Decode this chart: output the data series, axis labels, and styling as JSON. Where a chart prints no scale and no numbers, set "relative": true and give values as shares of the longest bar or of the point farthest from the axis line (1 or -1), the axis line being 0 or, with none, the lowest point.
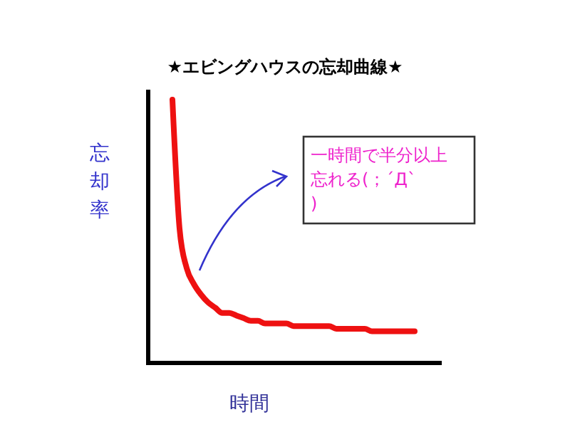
{
  "chart_data": {
    "type": "line",
    "title": "★エビングハウスの忘却曲線★",
    "xlabel": "時間",
    "ylabel": "忘却率",
    "relative": true,
    "line_style": "solid",
    "categories": [
      null,
      null,
      null,
      null,
      null,
      null,
      null,
      null,
      null,
      null,
      null,
      null,
      null,
      null,
      null,
      null,
      null,
      null,
      null,
      null,
      null,
      null,
      null,
      null,
      null,
      null,
      null,
      null,
      null,
      null,
      null,
      null,
      null,
      null,
      null
    ],
    "series": [
      {
        "color": "#ee1111",
        "values": [
          1,
          0.51,
          0.36,
          0.3,
          0.26,
          0.23,
          0.21,
          0.19,
          0.19,
          0.18,
          0.17,
          0.16,
          0.16,
          0.15,
          0.15,
          0.15,
          0.15,
          0.14,
          0.14,
          0.14,
          0.14,
          0.14,
          0.14,
          0.13,
          0.13,
          0.13,
          0.13,
          0.13,
          0.12,
          0.12,
          0.12,
          0.12,
          0.12,
          0.12,
          0.12
        ]
      }
    ],
    "annotations": [
      "一時間で半分以上忘れる(；´Д`)"
    ]
  }
}
